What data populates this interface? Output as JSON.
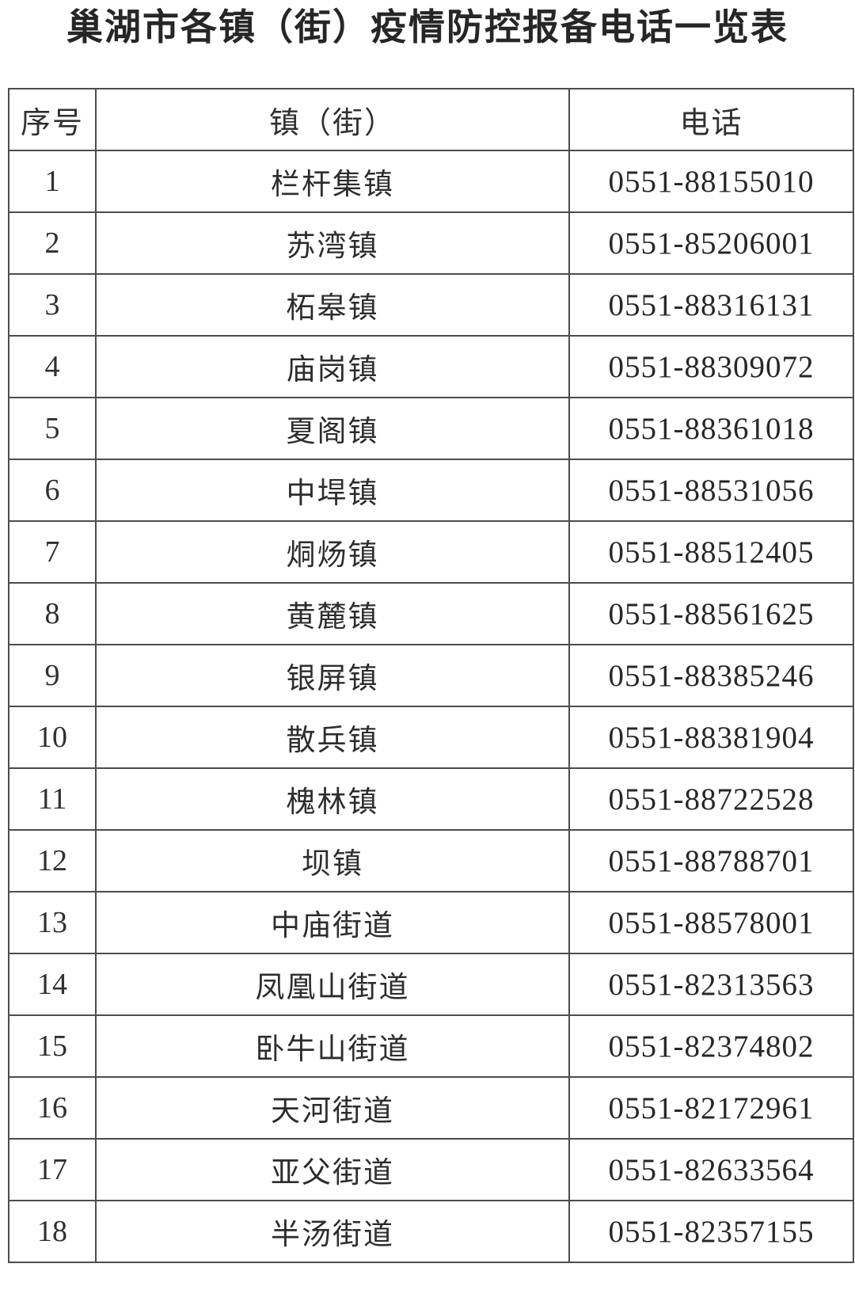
{
  "title": "巢湖市各镇（街）疫情防控报备电话一览表",
  "table": {
    "headers": {
      "seq": "序号",
      "town": "镇（街）",
      "phone": "电话"
    },
    "rows": [
      {
        "seq": "1",
        "town": "栏杆集镇",
        "phone": "0551-88155010"
      },
      {
        "seq": "2",
        "town": "苏湾镇",
        "phone": "0551-85206001"
      },
      {
        "seq": "3",
        "town": "柘皋镇",
        "phone": "0551-88316131"
      },
      {
        "seq": "4",
        "town": "庙岗镇",
        "phone": "0551-88309072"
      },
      {
        "seq": "5",
        "town": "夏阁镇",
        "phone": "0551-88361018"
      },
      {
        "seq": "6",
        "town": "中垾镇",
        "phone": "0551-88531056"
      },
      {
        "seq": "7",
        "town": "烔炀镇",
        "phone": "0551-88512405"
      },
      {
        "seq": "8",
        "town": "黄麓镇",
        "phone": "0551-88561625"
      },
      {
        "seq": "9",
        "town": "银屏镇",
        "phone": "0551-88385246"
      },
      {
        "seq": "10",
        "town": "散兵镇",
        "phone": "0551-88381904"
      },
      {
        "seq": "11",
        "town": "槐林镇",
        "phone": "0551-88722528"
      },
      {
        "seq": "12",
        "town": "坝镇",
        "phone": "0551-88788701"
      },
      {
        "seq": "13",
        "town": "中庙街道",
        "phone": "0551-88578001"
      },
      {
        "seq": "14",
        "town": "凤凰山街道",
        "phone": "0551-82313563"
      },
      {
        "seq": "15",
        "town": "卧牛山街道",
        "phone": "0551-82374802"
      },
      {
        "seq": "16",
        "town": "天河街道",
        "phone": "0551-82172961"
      },
      {
        "seq": "17",
        "town": "亚父街道",
        "phone": "0551-82633564"
      },
      {
        "seq": "18",
        "town": "半汤街道",
        "phone": "0551-82357155"
      }
    ]
  },
  "colors": {
    "text": "#2b2b2b",
    "border": "#4d4d4d",
    "background": "#ffffff"
  }
}
